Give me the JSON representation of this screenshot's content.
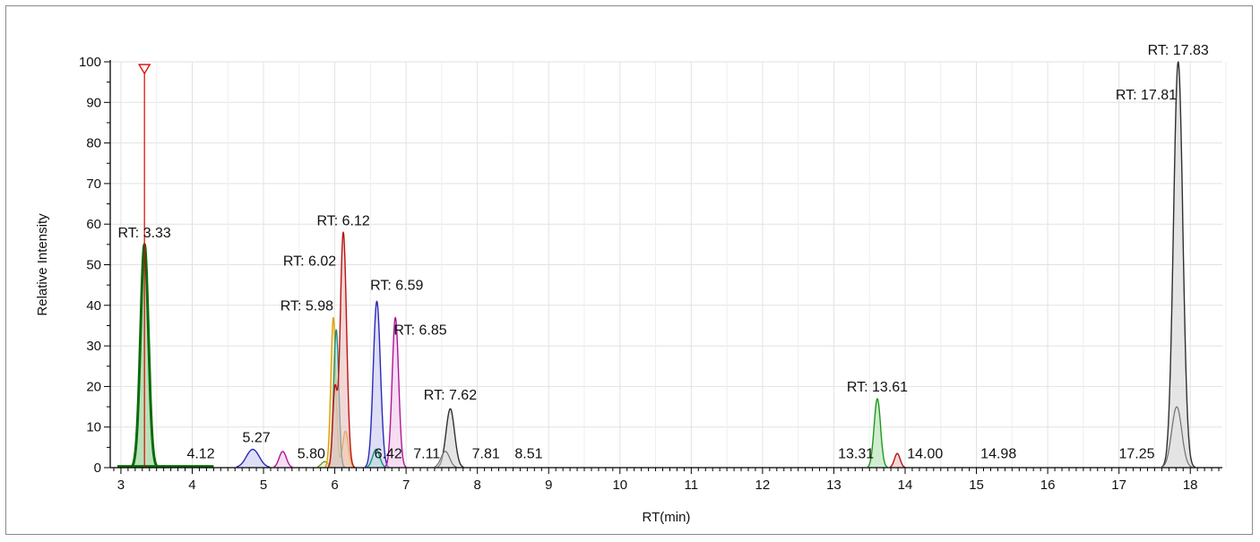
{
  "chart_data": {
    "type": "line",
    "title": "",
    "xlabel": "RT(min)",
    "ylabel": "Relative Intensity",
    "xlim": [
      2.85,
      18.45
    ],
    "ylim": [
      0,
      100
    ],
    "xticks": [
      3,
      4,
      5,
      6,
      7,
      8,
      9,
      10,
      11,
      12,
      13,
      14,
      15,
      16,
      17,
      18
    ],
    "yticks": [
      0,
      10,
      20,
      30,
      40,
      50,
      60,
      70,
      80,
      90,
      100
    ],
    "grid": true,
    "legend": "none",
    "marker": {
      "x": 3.33,
      "y": 98,
      "color": "#e00000",
      "shape": "triangle-down"
    },
    "series": [
      {
        "color": "#0a6b0a",
        "fill": "#7fc97f",
        "width": 3,
        "baseline": [
          [
            2.95,
            0.3
          ],
          [
            4.3,
            0.3
          ]
        ],
        "peaks": [
          {
            "rt": 3.33,
            "h": 55,
            "sigma": 0.055
          }
        ]
      },
      {
        "color": "#2a2ab8",
        "fill": "#c3c3ef",
        "width": 1.4,
        "peaks": [
          {
            "rt": 4.85,
            "h": 4.5,
            "sigma": 0.09
          },
          {
            "rt": 6.59,
            "h": 41,
            "sigma": 0.05
          }
        ]
      },
      {
        "color": "#b0169a",
        "fill": "#efc1e8",
        "width": 1.4,
        "peaks": [
          {
            "rt": 5.27,
            "h": 4,
            "sigma": 0.05
          },
          {
            "rt": 6.85,
            "h": 37,
            "sigma": 0.045
          }
        ]
      },
      {
        "color": "#5a8a1a",
        "fill": "#d7ebb8",
        "width": 1.2,
        "peaks": [
          {
            "rt": 5.86,
            "h": 1.5,
            "sigma": 0.05
          }
        ]
      },
      {
        "color": "#e0a000",
        "fill": "#f7e0a0",
        "width": 1.4,
        "peaks": [
          {
            "rt": 5.98,
            "h": 37,
            "sigma": 0.035
          },
          {
            "rt": 6.15,
            "h": 9,
            "sigma": 0.04
          }
        ]
      },
      {
        "color": "#1b8f7f",
        "fill": "#b3e0d9",
        "width": 1.4,
        "peaks": [
          {
            "rt": 6.02,
            "h": 34,
            "sigma": 0.035
          },
          {
            "rt": 6.58,
            "h": 4.5,
            "sigma": 0.05
          }
        ]
      },
      {
        "color": "#b81414",
        "fill": "#e9b7b7",
        "width": 1.4,
        "peaks": [
          {
            "rt": 6.0,
            "h": 18.5,
            "sigma": 0.03
          },
          {
            "rt": 6.12,
            "h": 58,
            "sigma": 0.045
          },
          {
            "rt": 13.89,
            "h": 3.5,
            "sigma": 0.04
          }
        ]
      },
      {
        "color": "#303030",
        "fill": "#cfcfcf",
        "width": 1.4,
        "peaks": [
          {
            "rt": 7.62,
            "h": 14.5,
            "sigma": 0.06
          },
          {
            "rt": 17.83,
            "h": 100,
            "sigma": 0.065
          }
        ]
      },
      {
        "color": "#707070",
        "fill": "#e4e4e4",
        "width": 1.2,
        "peaks": [
          {
            "rt": 7.55,
            "h": 4,
            "sigma": 0.06
          },
          {
            "rt": 17.81,
            "h": 15,
            "sigma": 0.07
          }
        ]
      },
      {
        "color": "#1c9a1c",
        "fill": "#a9dea9",
        "width": 1.4,
        "peaks": [
          {
            "rt": 13.61,
            "h": 17,
            "sigma": 0.045
          }
        ]
      }
    ],
    "annotations": [
      {
        "text": "RT: 3.33",
        "x": 3.33,
        "y": 55,
        "anchor": "middle"
      },
      {
        "text": "4.12",
        "x": 4.12,
        "y": 0.5,
        "anchor": "middle"
      },
      {
        "text": "5.27",
        "x": 4.9,
        "y": 4.5,
        "anchor": "middle"
      },
      {
        "text": "5.80",
        "x": 5.67,
        "y": 0.5,
        "anchor": "middle"
      },
      {
        "text": "RT: 5.98",
        "x": 5.98,
        "y": 37,
        "anchor": "end"
      },
      {
        "text": "RT: 6.02",
        "x": 6.02,
        "y": 48,
        "anchor": "end"
      },
      {
        "text": "RT: 6.12",
        "x": 6.12,
        "y": 58,
        "anchor": "middle"
      },
      {
        "text": "6.42",
        "x": 6.75,
        "y": 0.5,
        "anchor": "middle"
      },
      {
        "text": "RT: 6.59",
        "x": 6.87,
        "y": 42,
        "anchor": "middle"
      },
      {
        "text": "RT: 6.85",
        "x": 7.2,
        "y": 31,
        "anchor": "middle"
      },
      {
        "text": "7.11",
        "x": 7.29,
        "y": 0.5,
        "anchor": "middle"
      },
      {
        "text": "RT: 7.62",
        "x": 7.62,
        "y": 15,
        "anchor": "middle"
      },
      {
        "text": "7.81",
        "x": 8.12,
        "y": 0.5,
        "anchor": "middle"
      },
      {
        "text": "8.51",
        "x": 8.72,
        "y": 0.5,
        "anchor": "middle"
      },
      {
        "text": "13.31",
        "x": 13.31,
        "y": 0.5,
        "anchor": "middle"
      },
      {
        "text": "RT: 13.61",
        "x": 13.61,
        "y": 17,
        "anchor": "middle"
      },
      {
        "text": "14.00",
        "x": 14.28,
        "y": 0.5,
        "anchor": "middle"
      },
      {
        "text": "14.98",
        "x": 15.31,
        "y": 0.5,
        "anchor": "middle"
      },
      {
        "text": "17.25",
        "x": 17.25,
        "y": 0.5,
        "anchor": "middle"
      },
      {
        "text": "RT: 17.81",
        "x": 17.81,
        "y": 89,
        "anchor": "end"
      },
      {
        "text": "RT: 17.83",
        "x": 17.83,
        "y": 100,
        "anchor": "middle"
      }
    ]
  }
}
